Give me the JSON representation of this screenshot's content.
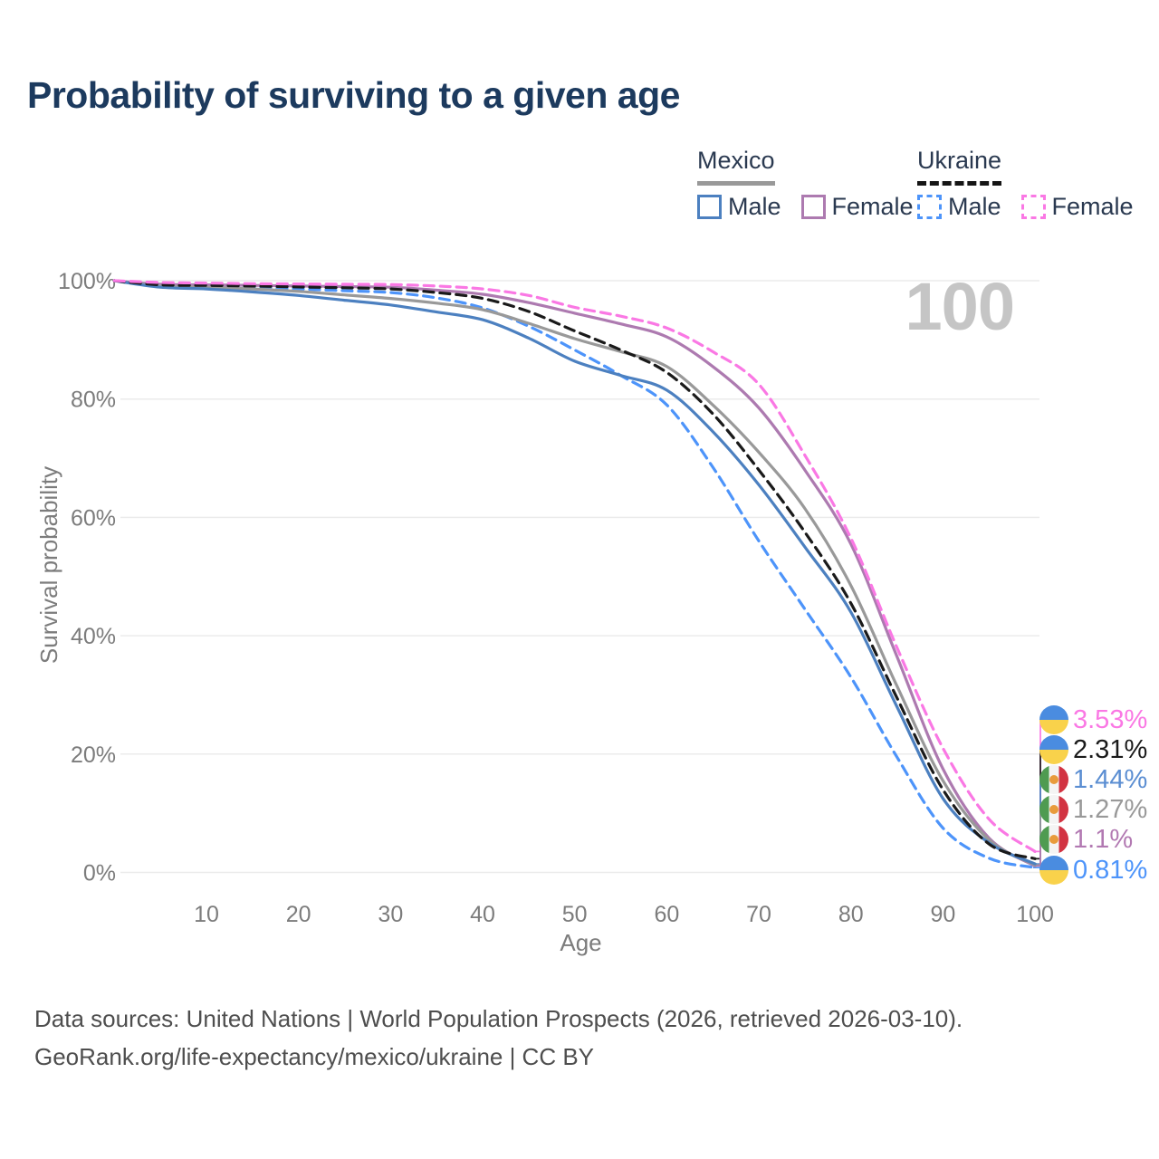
{
  "page": {
    "title": "Probability of surviving to a given age",
    "watermark": "100"
  },
  "legend": {
    "groups": [
      {
        "label": "Mexico",
        "line_style": "solid",
        "line_color": "#999999",
        "items": [
          {
            "label": "Male",
            "swatch_color": "#4c80c0",
            "swatch_style": "solid"
          },
          {
            "label": "Female",
            "swatch_color": "#ad7ab0",
            "swatch_style": "solid"
          }
        ]
      },
      {
        "label": "Ukraine",
        "line_style": "dashed",
        "line_color": "#151515",
        "items": [
          {
            "label": "Male",
            "swatch_color": "#4d94fa",
            "swatch_style": "dashed"
          },
          {
            "label": "Female",
            "swatch_color": "#fa78e4",
            "swatch_style": "dashed"
          }
        ]
      }
    ]
  },
  "chart_data": {
    "type": "line",
    "title": "Probability of surviving to a given age",
    "xlabel": "Age",
    "ylabel": "Survival probability",
    "xlim": [
      0,
      100
    ],
    "ylim": [
      0,
      100
    ],
    "grid": "horizontal",
    "legend_position": "top-right",
    "x_ticks": [
      10,
      20,
      30,
      40,
      50,
      60,
      70,
      80,
      90,
      100
    ],
    "y_ticks": [
      0,
      20,
      40,
      60,
      80,
      100
    ],
    "y_tick_labels": [
      "0%",
      "20%",
      "40%",
      "60%",
      "80%",
      "100%"
    ],
    "x": [
      0,
      5,
      10,
      15,
      20,
      25,
      30,
      35,
      40,
      45,
      50,
      55,
      60,
      65,
      70,
      75,
      80,
      85,
      90,
      95,
      100
    ],
    "series": [
      {
        "name": "Ukraine Female",
        "country": "Ukraine",
        "sex": "Female",
        "color": "#fa78e4",
        "dashed": true,
        "flag": "ukraine",
        "end_label": "3.53%",
        "label_color": "#fa78e4",
        "values": [
          100,
          99.7,
          99.6,
          99.5,
          99.45,
          99.4,
          99.35,
          99.1,
          98.6,
          97.5,
          95.5,
          94,
          92,
          88,
          82.5,
          70.5,
          56.5,
          38,
          21,
          9,
          3.53
        ]
      },
      {
        "name": "Ukraine",
        "country": "Ukraine",
        "sex": "Both",
        "color": "#1a1a1a",
        "dashed": true,
        "flag": "ukraine",
        "end_label": "2.31%",
        "label_color": "#1a1a1a",
        "values": [
          100,
          99.3,
          99.2,
          99.1,
          98.95,
          98.8,
          98.6,
          98,
          97,
          94.8,
          91.5,
          88.3,
          84.5,
          77.5,
          68,
          57.5,
          45.5,
          29.5,
          14,
          4.8,
          2.31
        ]
      },
      {
        "name": "Mexico Male",
        "country": "Mexico",
        "sex": "Male",
        "color": "#4c80c0",
        "dashed": false,
        "flag": "mexico",
        "end_label": "1.44%",
        "label_color": "#5b8ed2",
        "values": [
          100,
          98.9,
          98.6,
          98.1,
          97.5,
          96.7,
          95.9,
          94.7,
          93.4,
          90.3,
          86.4,
          84,
          81.5,
          74.5,
          65.5,
          55,
          44,
          28,
          12.5,
          5,
          1.44
        ]
      },
      {
        "name": "Mexico",
        "country": "Mexico",
        "sex": "Both",
        "color": "#999999",
        "dashed": false,
        "flag": "mexico",
        "end_label": "1.27%",
        "label_color": "#999999",
        "values": [
          100,
          99.1,
          98.9,
          98.6,
          98.2,
          97.6,
          97,
          96.2,
          95.1,
          92.8,
          90.2,
          88,
          85.5,
          79,
          71,
          61.5,
          48.5,
          31.5,
          15.5,
          5.5,
          1.27
        ]
      },
      {
        "name": "Mexico Female",
        "country": "Mexico",
        "sex": "Female",
        "color": "#ad7ab0",
        "dashed": false,
        "flag": "mexico",
        "end_label": "1.1%",
        "label_color": "#b279b2",
        "values": [
          100,
          99.4,
          99.3,
          99.2,
          99.1,
          99,
          98.9,
          98.4,
          97.7,
          96.3,
          94.5,
          92.7,
          90.5,
          85.5,
          78.5,
          68,
          55.5,
          36.5,
          17.5,
          5.8,
          1.1
        ]
      },
      {
        "name": "Ukraine Male",
        "country": "Ukraine",
        "sex": "Male",
        "color": "#4d94fa",
        "dashed": true,
        "flag": "ukraine",
        "end_label": "0.81%",
        "label_color": "#4d94fa",
        "values": [
          100,
          99.2,
          99.1,
          98.9,
          98.6,
          98.3,
          98,
          97.1,
          95.4,
          92.3,
          88.3,
          84,
          79,
          68.5,
          56,
          44.5,
          33,
          19.5,
          7.5,
          2.4,
          0.81
        ]
      }
    ]
  },
  "flag_colors": {
    "ukraine": {
      "top": "#4a8ce0",
      "bottom": "#f9d24b"
    },
    "mexico": {
      "green": "#4f9b51",
      "white": "#f4f4f4",
      "red": "#d23342",
      "emblem": "#e89b3c"
    }
  },
  "footer": {
    "line1": "Data sources: United Nations | World Population Prospects (2026, retrieved 2026-03-10).",
    "line2": "GeoRank.org/life-expectancy/mexico/ukraine | CC BY"
  }
}
